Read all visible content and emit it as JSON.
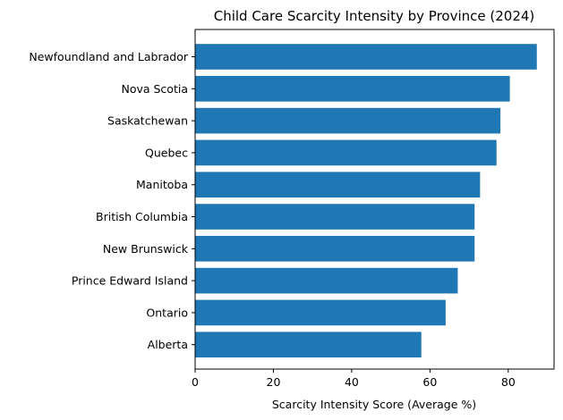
{
  "chart_data": {
    "type": "bar",
    "orientation": "horizontal",
    "title": "Child Care Scarcity Intensity by Province (2024)",
    "xlabel": "Scarcity Intensity Score (Average %)",
    "ylabel": "",
    "xlim": [
      0,
      91.7
    ],
    "xticks": [
      0,
      20,
      40,
      60,
      80
    ],
    "xtick_labels": [
      "0",
      "20",
      "40",
      "60",
      "80"
    ],
    "grid": false,
    "legend": false,
    "bar_color": "#1f77b4",
    "categories": [
      "Newfoundland and Labrador",
      "Nova Scotia",
      "Saskatchewan",
      "Quebec",
      "Manitoba",
      "British Columbia",
      "New Brunswick",
      "Prince Edward Island",
      "Ontario",
      "Alberta"
    ],
    "values": [
      87.3,
      80.4,
      78.0,
      77.0,
      72.8,
      71.4,
      71.4,
      67.1,
      64.0,
      57.8
    ]
  }
}
